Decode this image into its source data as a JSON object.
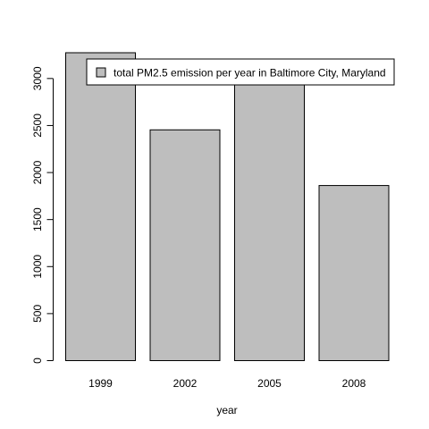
{
  "chart_data": {
    "type": "bar",
    "categories": [
      "1999",
      "2002",
      "2005",
      "2008"
    ],
    "values": [
      3274,
      2454,
      3091,
      1862
    ],
    "title": "",
    "xlabel": "year",
    "ylabel": "",
    "ylim": [
      0,
      3274
    ],
    "yticks": [
      0,
      500,
      1000,
      1500,
      2000,
      2500,
      3000
    ],
    "grid": false,
    "legend": {
      "position": "top-right",
      "entries": [
        {
          "label": "total PM2.5 emission per year in Baltimore City, Maryland",
          "color": "#bebebe"
        }
      ]
    },
    "colors": {
      "bar_fill": "#bebebe",
      "bar_stroke": "#000000"
    }
  }
}
